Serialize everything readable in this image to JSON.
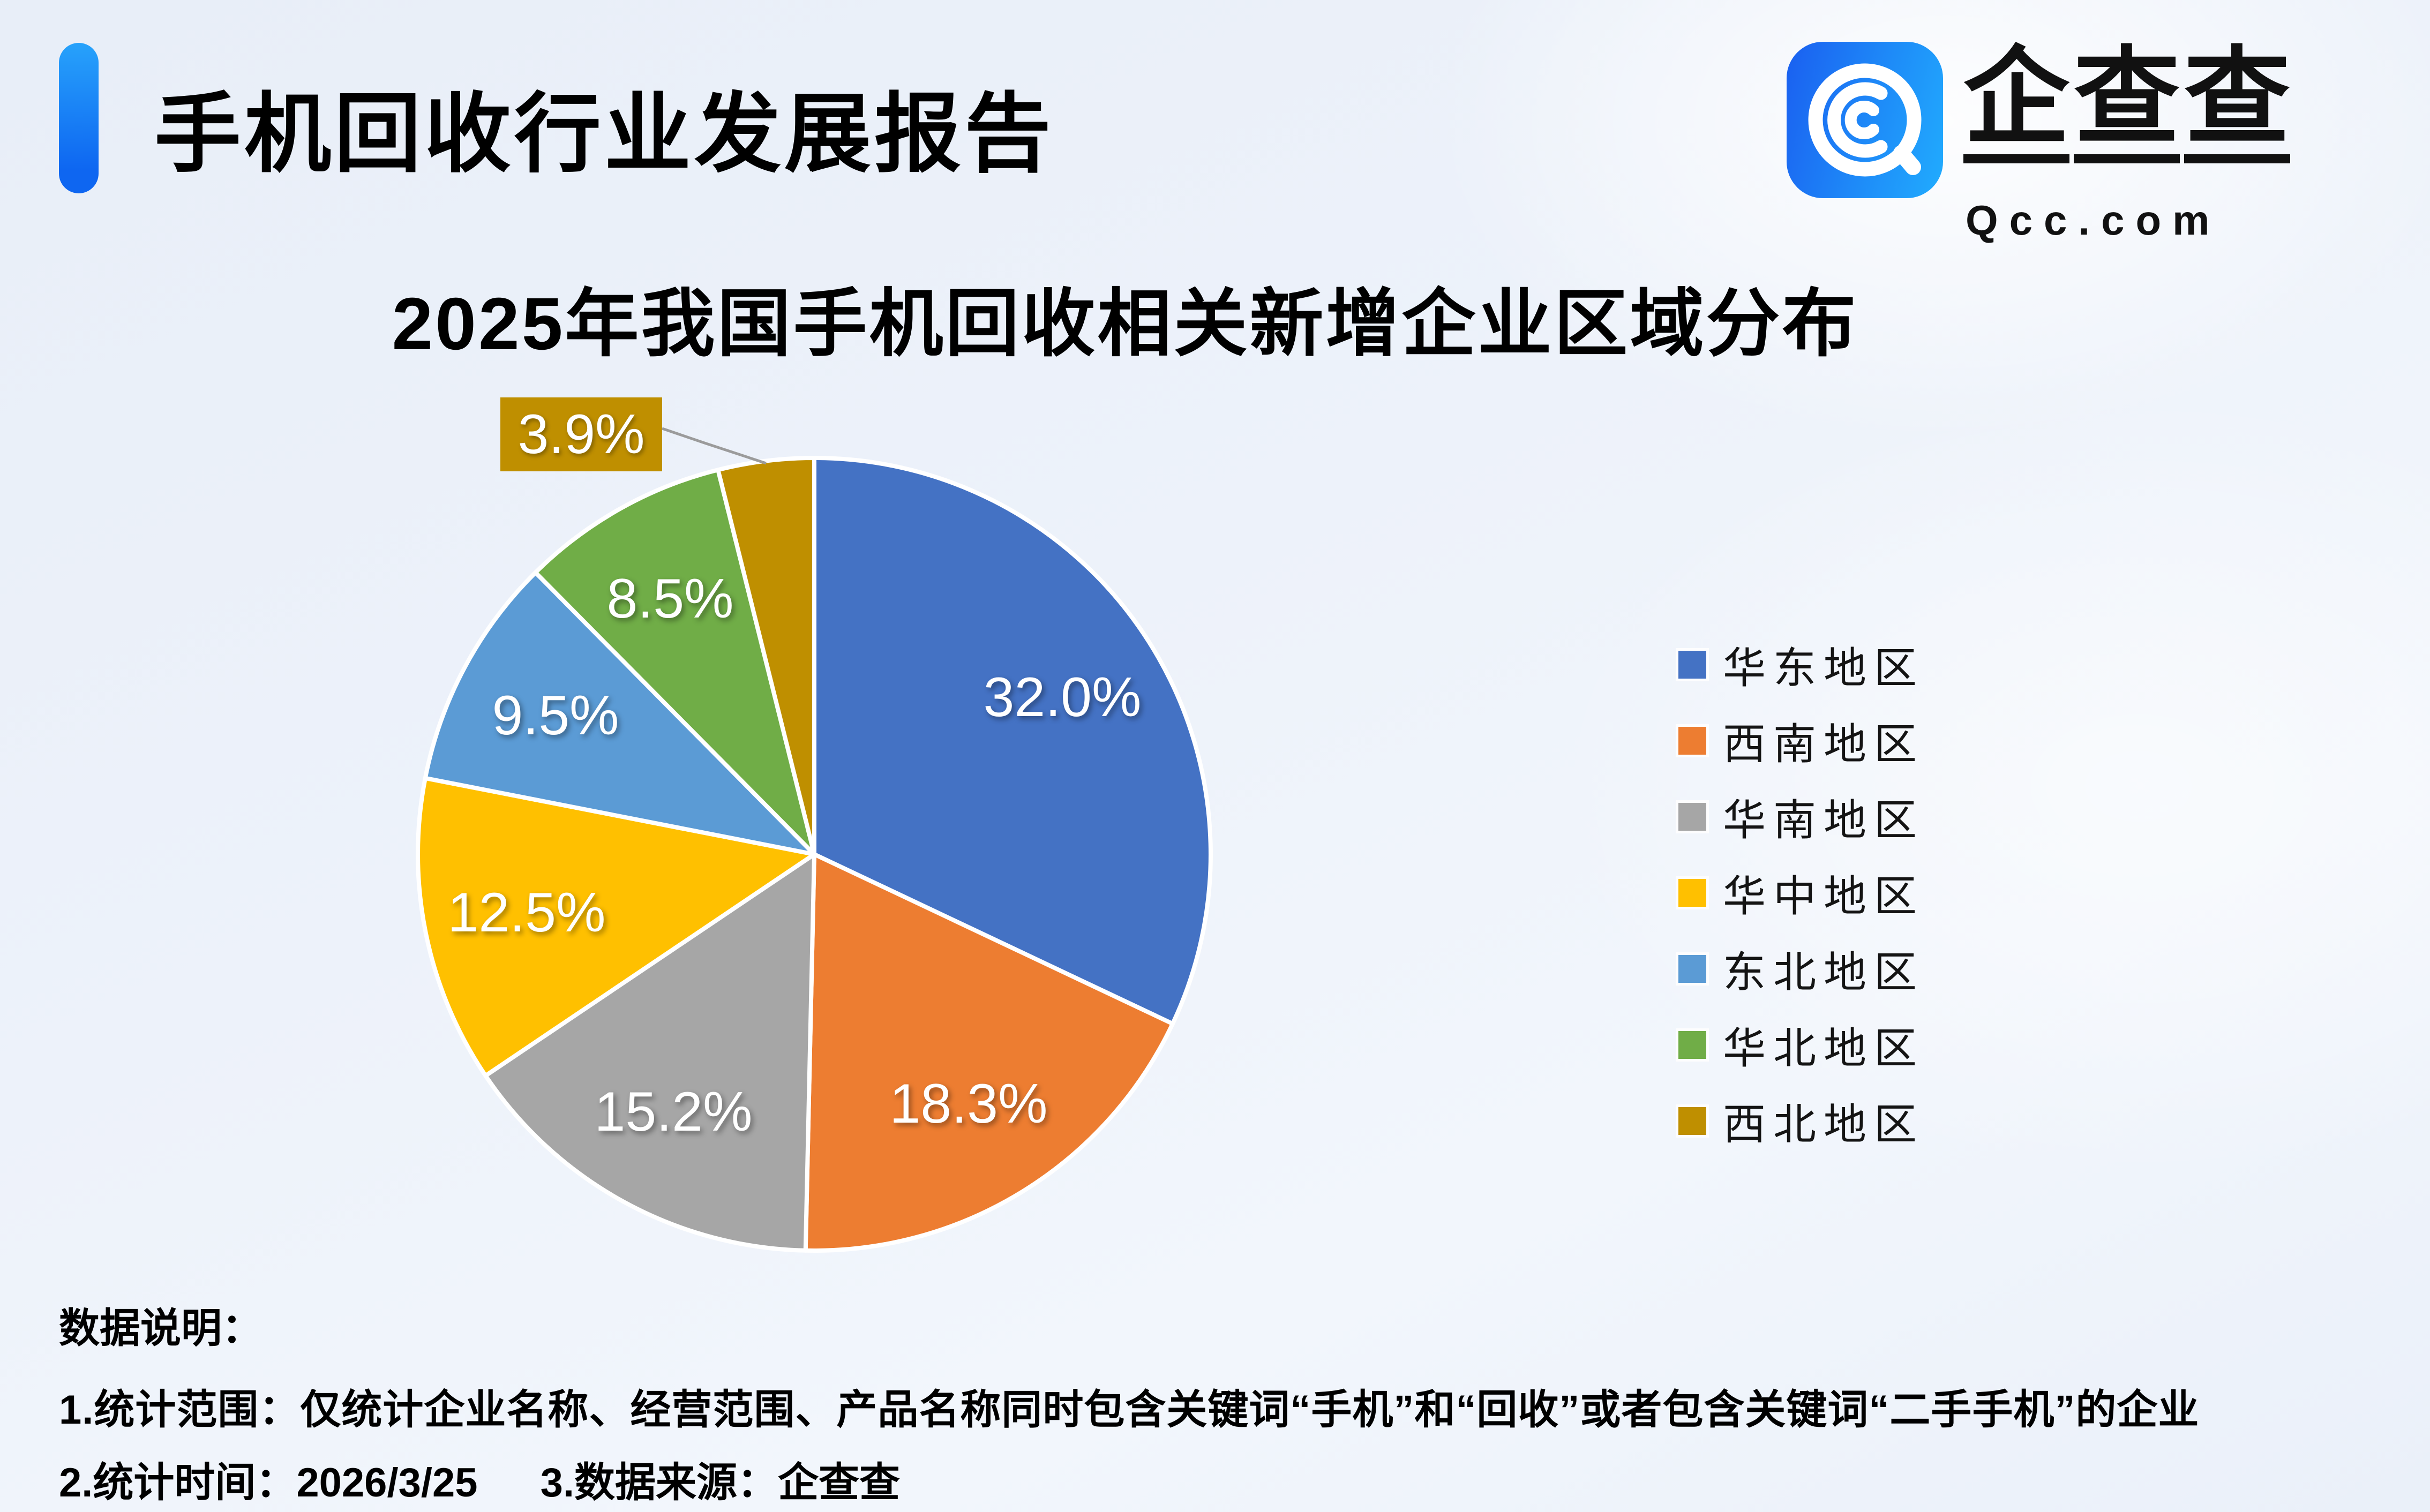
{
  "page": {
    "header": {
      "title": "手机回收行业发展报告",
      "logo": {
        "brand_name": "企查查",
        "brand_chars": [
          "企",
          "查",
          "查"
        ],
        "domain": "Qcc.com",
        "icon_colors": [
          "#1A5FF0",
          "#21ACFE"
        ]
      }
    },
    "notes": {
      "heading": "数据说明：",
      "line1": "1.统计范围：仅统计企业名称、经营范围、产品名称同时包含关键词“手机”和“回收”或者包含关键词“二手手机”的企业",
      "line2_time": "2.统计时间：2026/3/25",
      "line2_source": "3.数据来源：企查查"
    }
  },
  "chart_data": {
    "type": "pie",
    "title": "2025年我国手机回收相关新增企业区域分布",
    "categories": [
      "华东地区",
      "西南地区",
      "华南地区",
      "华中地区",
      "东北地区",
      "华北地区",
      "西北地区"
    ],
    "values": [
      32.0,
      18.3,
      15.2,
      12.5,
      9.5,
      8.5,
      3.9
    ],
    "labels": [
      "32.0%",
      "18.3%",
      "15.2%",
      "12.5%",
      "9.5%",
      "8.5%",
      "3.9%"
    ],
    "colors": [
      "#4472C4",
      "#ED7D31",
      "#A6A6A6",
      "#FFC000",
      "#5B9BD5",
      "#70AD47",
      "#BF8F00"
    ],
    "unit": "%",
    "start_angle_deg": 0,
    "direction": "clockwise",
    "slice_border_color": "#FFFFFF",
    "legend_position": "right",
    "callout": {
      "index": 6,
      "label": "3.9%",
      "box_color": "#BF8F00",
      "leader_color": "#9B9B9B"
    }
  }
}
